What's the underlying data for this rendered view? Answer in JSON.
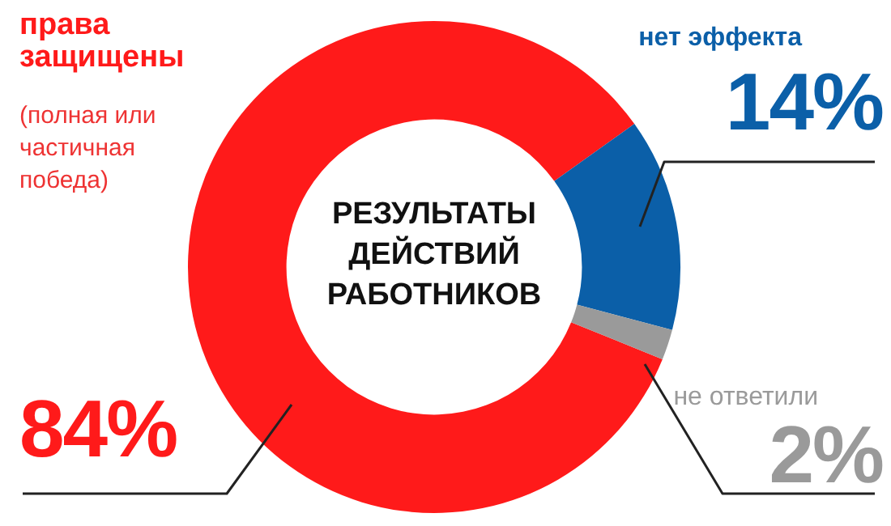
{
  "chart_data": {
    "type": "donut",
    "title": "РЕЗУЛЬТАТЫ ДЕЙСТВИЙ РАБОТНИКОВ",
    "categories": [
      "права защищены",
      "нет эффекта",
      "не ответили"
    ],
    "values": [
      84,
      14,
      2
    ],
    "value_labels": [
      "84%",
      "14%",
      "2%"
    ],
    "colors": [
      "#ff1a1a",
      "#0b5fa8",
      "#9a9a9a"
    ],
    "annotations": [
      "(полная или частичная победа)"
    ],
    "legend": false
  }
}
